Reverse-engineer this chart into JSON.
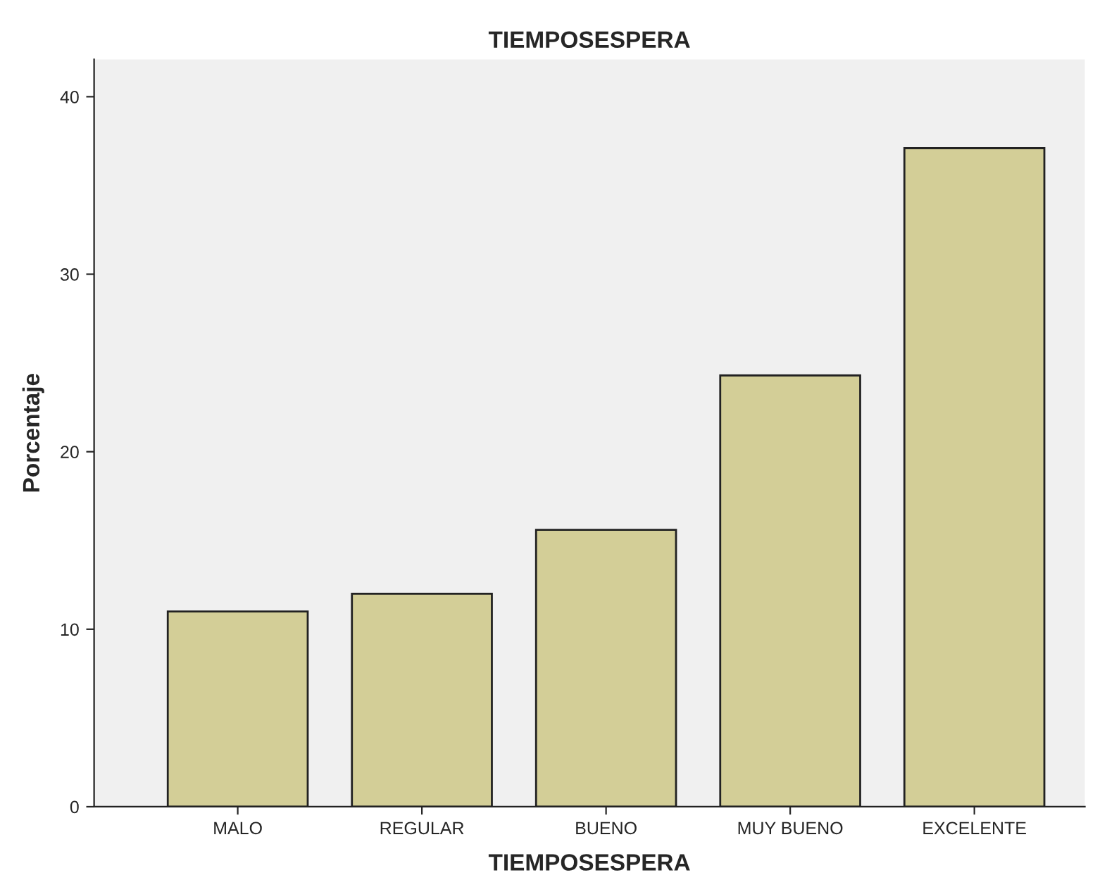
{
  "chart_data": {
    "type": "bar",
    "title": "TIEMPOSESPERA",
    "xlabel": "TIEMPOSESPERA",
    "ylabel": "Porcentaje",
    "categories": [
      "MALO",
      "REGULAR",
      "BUENO",
      "MUY BUENO",
      "EXCELENTE"
    ],
    "values": [
      11.0,
      12.0,
      15.6,
      24.3,
      37.1
    ],
    "color": "#d3ce97",
    "ylim": [
      0,
      42.1
    ],
    "yticks": [
      0,
      10,
      20,
      30,
      40
    ],
    "grid": false,
    "legend": false
  }
}
